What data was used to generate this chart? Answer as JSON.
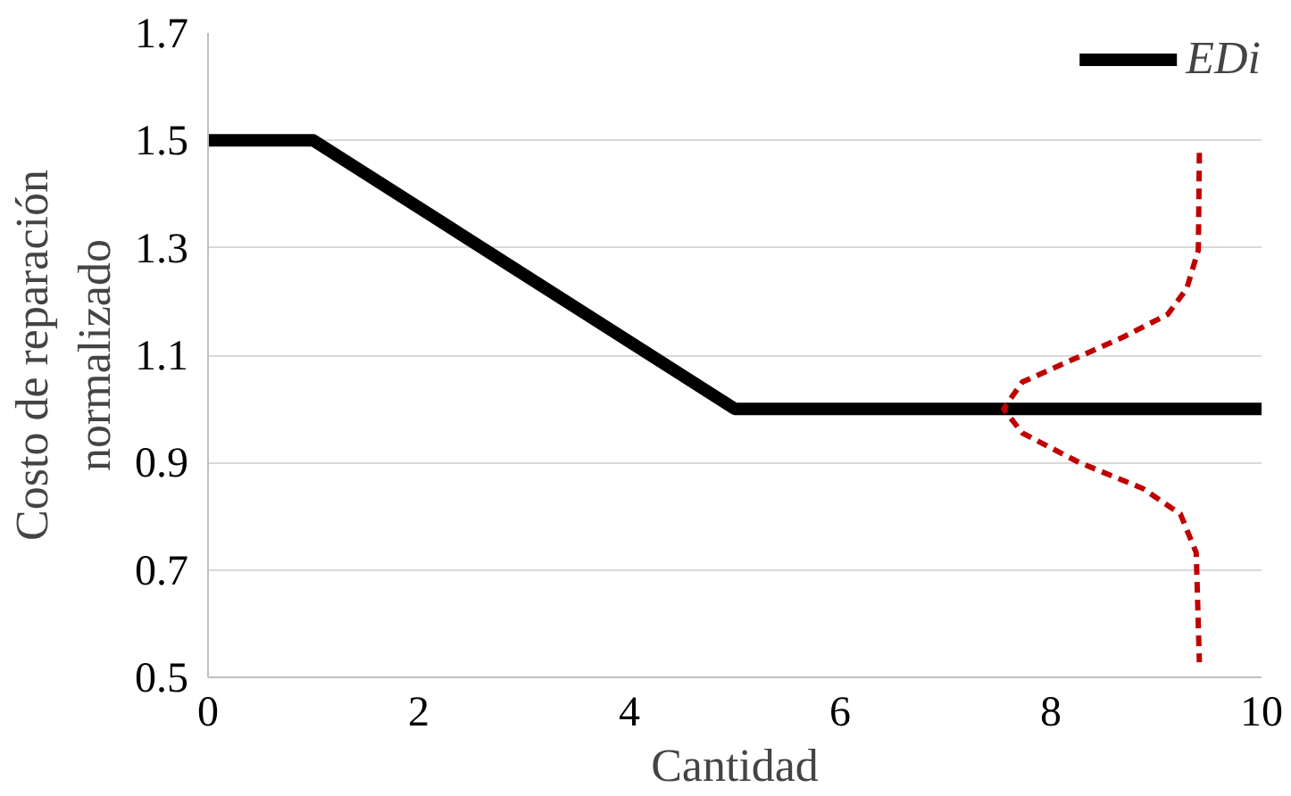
{
  "chart_data": {
    "type": "line",
    "xlabel": "Cantidad",
    "ylabel": "Costo de reparación\nnormalizado",
    "xlim": [
      0,
      10
    ],
    "xticks": [
      0,
      2,
      4,
      6,
      8,
      10
    ],
    "ylim": [
      0.5,
      1.7
    ],
    "yticks": [
      0.5,
      0.7,
      0.9,
      1.1,
      1.3,
      1.5,
      1.7
    ],
    "grid": "y",
    "legend": "top right",
    "marker": "none",
    "series": [
      {
        "name": "EDi",
        "color": "#000000",
        "line_style": "solid",
        "x": [
          0,
          1,
          5,
          10
        ],
        "values": [
          1.5,
          1.5,
          1.0,
          1.0
        ]
      },
      {
        "color": "#c00000",
        "line_style": "dashed",
        "x": [
          9.41,
          9.4,
          9.29,
          9.11,
          8.69,
          8.21,
          7.73,
          7.55,
          7.73,
          8.27,
          8.87,
          9.23,
          9.38,
          9.41
        ],
        "values": [
          1.477,
          1.296,
          1.224,
          1.176,
          1.134,
          1.092,
          1.05,
          1.0,
          0.955,
          0.9,
          0.852,
          0.804,
          0.732,
          0.528
        ]
      }
    ]
  }
}
